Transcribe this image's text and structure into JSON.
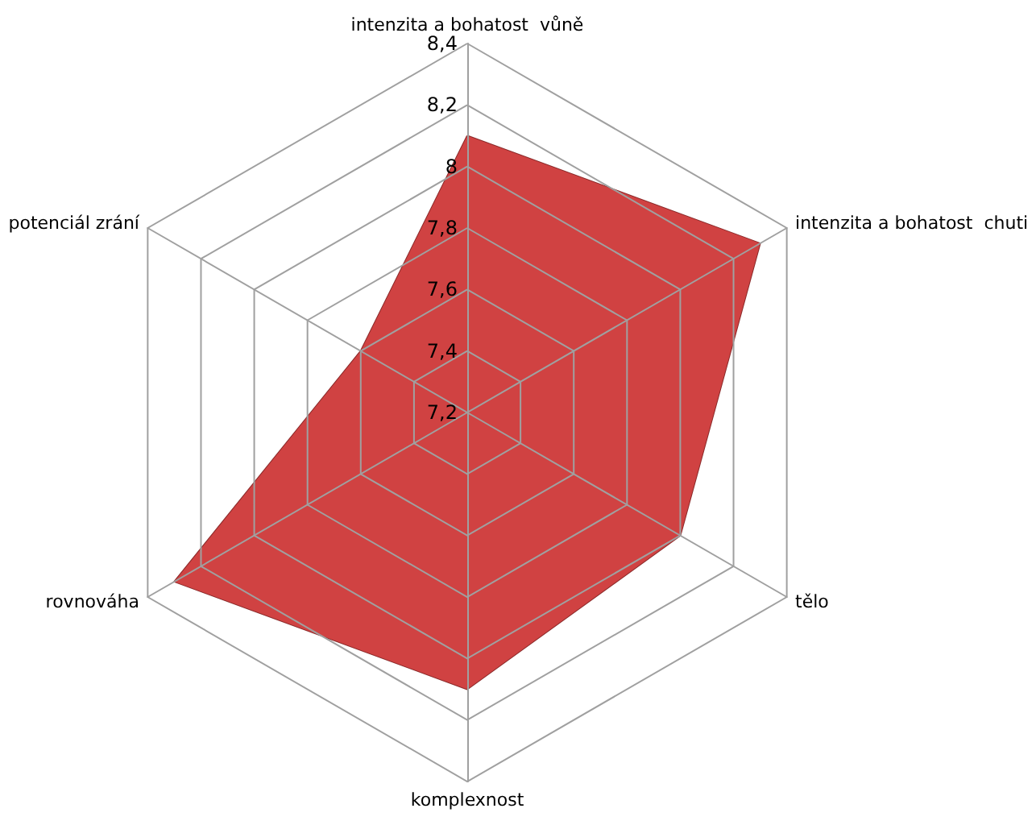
{
  "chart_data": {
    "type": "radar",
    "categories": [
      "intenzita a bohatost  vůně",
      "intenzita a bohatost  chuti",
      "tělo",
      "komplexnost",
      "rovnováha",
      "potenciál zrání"
    ],
    "series": [
      {
        "color": "#d04242",
        "values": [
          8.1,
          8.3,
          8.0,
          8.1,
          8.3,
          7.6
        ]
      }
    ],
    "ylim": [
      7.2,
      8.4
    ],
    "yticks": [
      {
        "value": 7.2,
        "label": "7,2"
      },
      {
        "value": 7.4,
        "label": "7,4"
      },
      {
        "value": 7.6,
        "label": "7,6"
      },
      {
        "value": 7.8,
        "label": "7,8"
      },
      {
        "value": 8,
        "label": "8"
      },
      {
        "value": 8.2,
        "label": "8,2"
      },
      {
        "value": 8.4,
        "label": "8,4"
      }
    ],
    "grid": true,
    "marker": "none"
  }
}
